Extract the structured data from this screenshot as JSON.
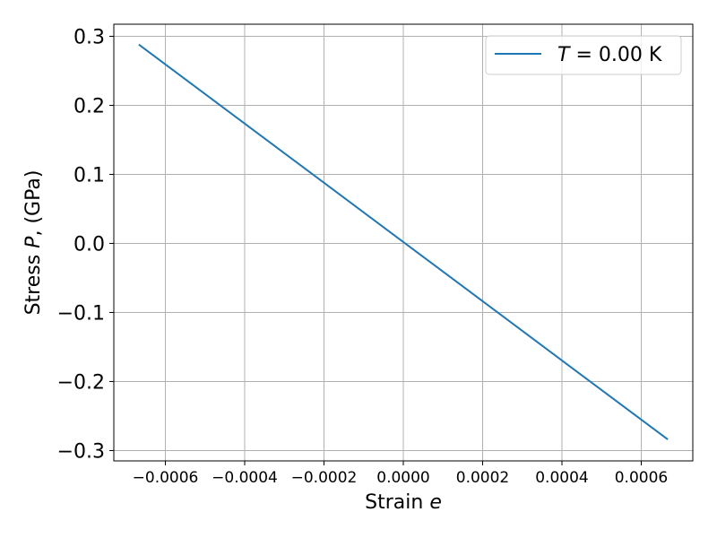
{
  "chart_data": {
    "type": "line",
    "xlabel_text": "Strain ",
    "xlabel_var": "e",
    "ylabel_prefix": "Stress ",
    "ylabel_var": "P",
    "ylabel_suffix": ", (GPa)",
    "xlim": [
      -0.00073,
      0.00073
    ],
    "ylim": [
      -0.315,
      0.3175
    ],
    "x_ticks": [
      -0.0006,
      -0.0004,
      -0.0002,
      0.0,
      0.0002,
      0.0004,
      0.0006
    ],
    "x_tick_labels": [
      "−0.0006",
      "−0.0004",
      "−0.0002",
      "0.0000",
      "0.0002",
      "0.0004",
      "0.0006"
    ],
    "y_ticks": [
      0.3,
      0.2,
      0.1,
      0.0,
      -0.1,
      -0.2,
      -0.3
    ],
    "y_tick_labels": [
      "0.3",
      "0.2",
      "0.1",
      "0.0",
      "−0.1",
      "−0.2",
      "−0.3"
    ],
    "grid": true,
    "legend_position": "top-right",
    "series": [
      {
        "legend_var": "T",
        "legend_rest": " = 0.00 K",
        "color": "#1f77b4",
        "x": [
          -0.000667,
          0.000667
        ],
        "y": [
          0.288,
          -0.284
        ]
      }
    ]
  }
}
